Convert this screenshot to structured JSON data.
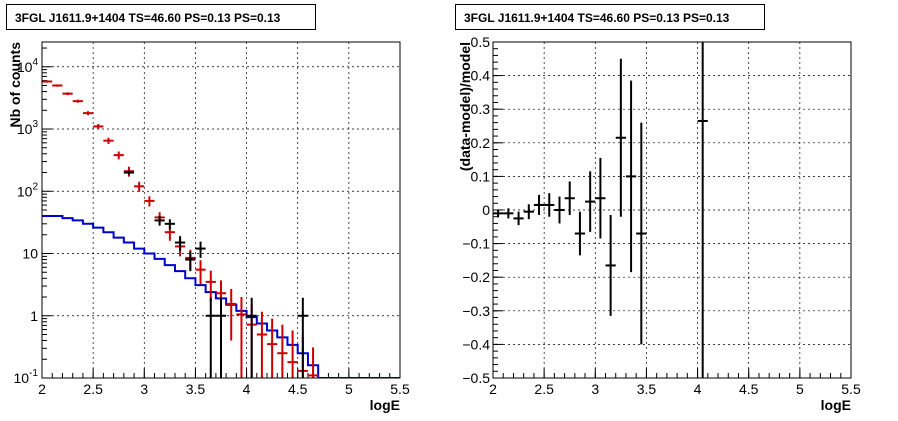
{
  "chart_data": [
    {
      "type": "line",
      "title": "3FGL J1611.9+1404 TS=46.60 PS=0.13 PS=0.13",
      "xlabel": "logE",
      "ylabel": "Nb of counts",
      "xlim": [
        2,
        5.5
      ],
      "ylim": [
        0.1,
        25000
      ],
      "yscale": "log",
      "grid": true,
      "xticks": [
        "2",
        "2.5",
        "3",
        "3.5",
        "4",
        "4.5",
        "5",
        "5.5"
      ],
      "yticks": [
        "10-1",
        "1",
        "10",
        "102",
        "103",
        "104"
      ],
      "series": [
        {
          "kind": "model-step",
          "color": "#0000cc",
          "x_edges": [
            2.0,
            2.1,
            2.2,
            2.3,
            2.4,
            2.5,
            2.6,
            2.7,
            2.8,
            2.9,
            3.0,
            3.1,
            3.2,
            3.3,
            3.4,
            3.5,
            3.6,
            3.7,
            3.8,
            3.9,
            4.0,
            4.1,
            4.2,
            4.3,
            4.4,
            4.5,
            4.6,
            4.7,
            4.8,
            4.9,
            5.0,
            5.1,
            5.2,
            5.3,
            5.4,
            5.5
          ],
          "values": [
            40,
            40,
            37,
            34,
            30,
            26,
            22,
            18,
            15,
            12,
            10,
            8.2,
            6.5,
            5.2,
            4.0,
            3.1,
            2.4,
            1.9,
            1.5,
            1.2,
            0.95,
            0.75,
            0.58,
            0.45,
            0.34,
            0.25,
            0.16,
            0.1,
            0.1,
            0.1,
            0.1,
            0.1,
            0.1,
            0.1,
            0.1
          ]
        },
        {
          "kind": "model-points",
          "color": "#cc0000",
          "x": [
            2.05,
            2.15,
            2.25,
            2.35,
            2.45,
            2.55,
            2.65,
            2.75,
            2.85,
            2.95,
            3.05,
            3.15,
            3.25,
            3.35,
            3.45,
            3.55,
            3.65,
            3.75,
            3.85,
            3.95,
            4.05,
            4.15,
            4.25,
            4.35,
            4.45,
            4.55,
            4.65
          ],
          "y": [
            5800,
            5000,
            3700,
            2800,
            1800,
            1100,
            650,
            380,
            210,
            120,
            70,
            38,
            22,
            13,
            8.5,
            5.5,
            3.5,
            2.3,
            1.55,
            1.05,
            0.72,
            0.5,
            0.35,
            0.25,
            0.18,
            0.13,
            0.11
          ],
          "err": [
            250,
            220,
            190,
            160,
            130,
            100,
            75,
            55,
            38,
            22,
            13,
            8,
            6,
            4,
            3,
            2.3,
            1.8,
            1.4,
            1.15,
            0.95,
            0.8,
            0.66,
            0.55,
            0.47,
            0.4,
            0.33,
            0.2
          ]
        },
        {
          "kind": "data-points",
          "color": "#000000",
          "x": [
            2.85,
            3.15,
            3.25,
            3.35,
            3.45,
            3.55,
            3.65,
            3.75,
            4.05,
            4.55
          ],
          "y": [
            200,
            34,
            30,
            15,
            8,
            12,
            1,
            1,
            1,
            1
          ],
          "err": [
            14,
            6,
            5.5,
            4,
            2.8,
            3.5,
            0.95,
            0.95,
            0.95,
            0.95
          ]
        }
      ]
    },
    {
      "type": "scatter",
      "title": "3FGL J1611.9+1404 TS=46.60 PS=0.13 PS=0.13",
      "xlabel": "logE",
      "ylabel": "(data-model)/model",
      "xlim": [
        2,
        5.5
      ],
      "ylim": [
        -0.5,
        0.5
      ],
      "grid": true,
      "xticks": [
        "2",
        "2.5",
        "3",
        "3.5",
        "4",
        "4.5",
        "5",
        "5.5"
      ],
      "yticks": [
        "−0.5",
        "−0.4",
        "−0.3",
        "−0.2",
        "−0.1",
        "0",
        "0.1",
        "0.2",
        "0.3",
        "0.4",
        "0.5"
      ],
      "series": [
        {
          "color": "#000000",
          "x": [
            2.05,
            2.15,
            2.25,
            2.35,
            2.45,
            2.55,
            2.65,
            2.75,
            2.85,
            2.95,
            3.05,
            3.15,
            3.25,
            3.35,
            3.45,
            4.05
          ],
          "y": [
            -0.01,
            -0.01,
            -0.025,
            -0.005,
            0.015,
            0.015,
            0.0,
            0.035,
            -0.07,
            0.025,
            0.035,
            -0.165,
            0.215,
            0.1,
            -0.07,
            0.265
          ],
          "err": [
            0.012,
            0.015,
            0.02,
            0.022,
            0.03,
            0.035,
            0.04,
            0.05,
            0.065,
            0.09,
            0.12,
            0.15,
            0.235,
            0.285,
            0.33,
            0.9
          ]
        }
      ]
    }
  ]
}
